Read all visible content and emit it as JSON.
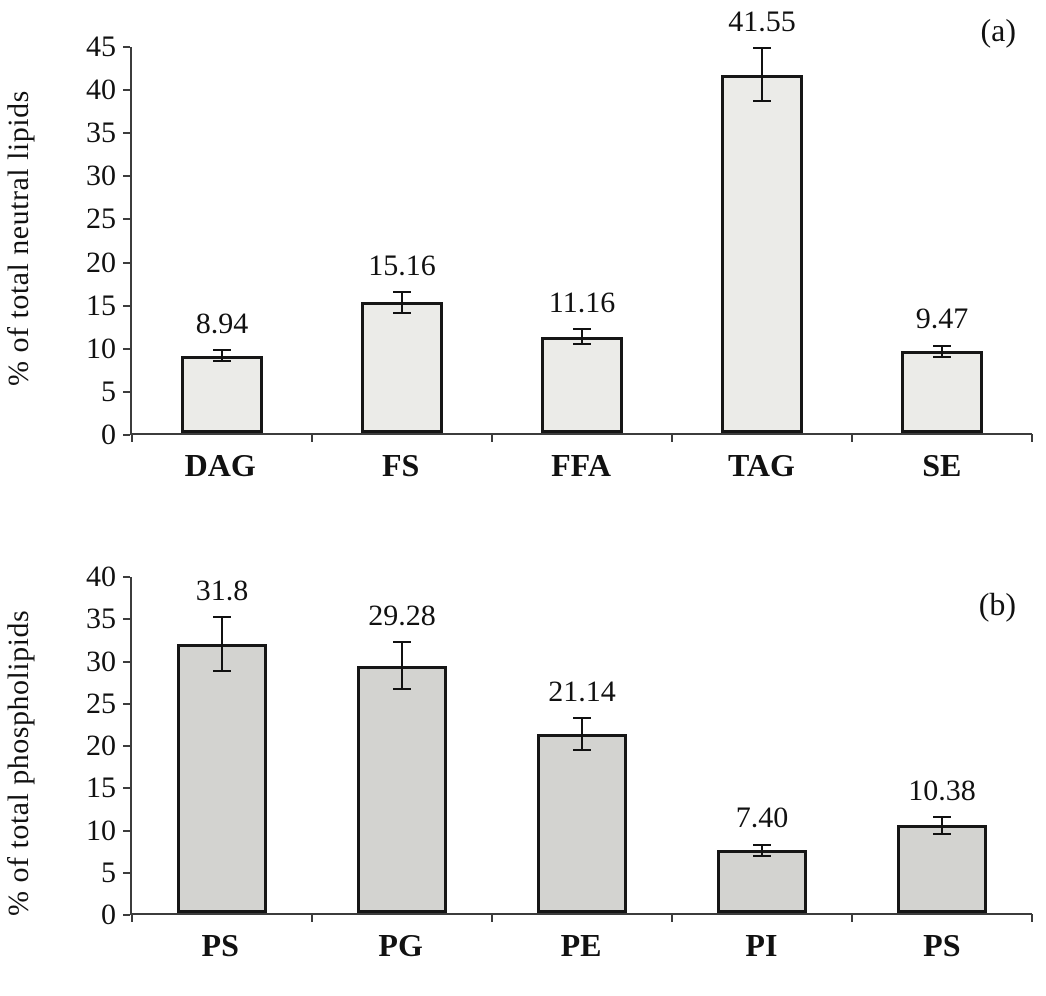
{
  "figure": {
    "panels": [
      {
        "label": "(a)",
        "ylabel": "% of total neutral lipids"
      },
      {
        "label": "(b)",
        "ylabel": "% of total phospholipids"
      }
    ]
  },
  "chart_data": [
    {
      "type": "bar",
      "title": "",
      "annotation": "(a)",
      "xlabel": "",
      "ylabel": "% of total neutral lipids",
      "categories": [
        "DAG",
        "FS",
        "FFA",
        "TAG",
        "SE"
      ],
      "values": [
        8.94,
        15.16,
        11.16,
        41.55,
        9.47
      ],
      "value_labels": [
        "8.94",
        "15.16",
        "11.16",
        "41.55",
        "9.47"
      ],
      "errors": [
        0.75,
        1.3,
        1.0,
        3.2,
        0.75
      ],
      "ylim": [
        0,
        45
      ],
      "ytick_step": 5,
      "grid": false,
      "legend": "none",
      "bar_color": "#ebebe8",
      "bar_border_color": "#161616"
    },
    {
      "type": "bar",
      "title": "",
      "annotation": "(b)",
      "xlabel": "",
      "ylabel": "% of total phospholipids",
      "categories": [
        "PS",
        "PG",
        "PE",
        "PI",
        "PS"
      ],
      "values": [
        31.8,
        29.28,
        21.14,
        7.4,
        10.38
      ],
      "value_labels": [
        "31.8",
        "29.28",
        "21.14",
        "7.40",
        "10.38"
      ],
      "errors": [
        3.3,
        2.9,
        2.0,
        0.8,
        1.1
      ],
      "ylim": [
        0,
        40
      ],
      "ytick_step": 5,
      "grid": false,
      "legend": "none",
      "bar_color": "#d3d3d0",
      "bar_border_color": "#161616"
    }
  ]
}
